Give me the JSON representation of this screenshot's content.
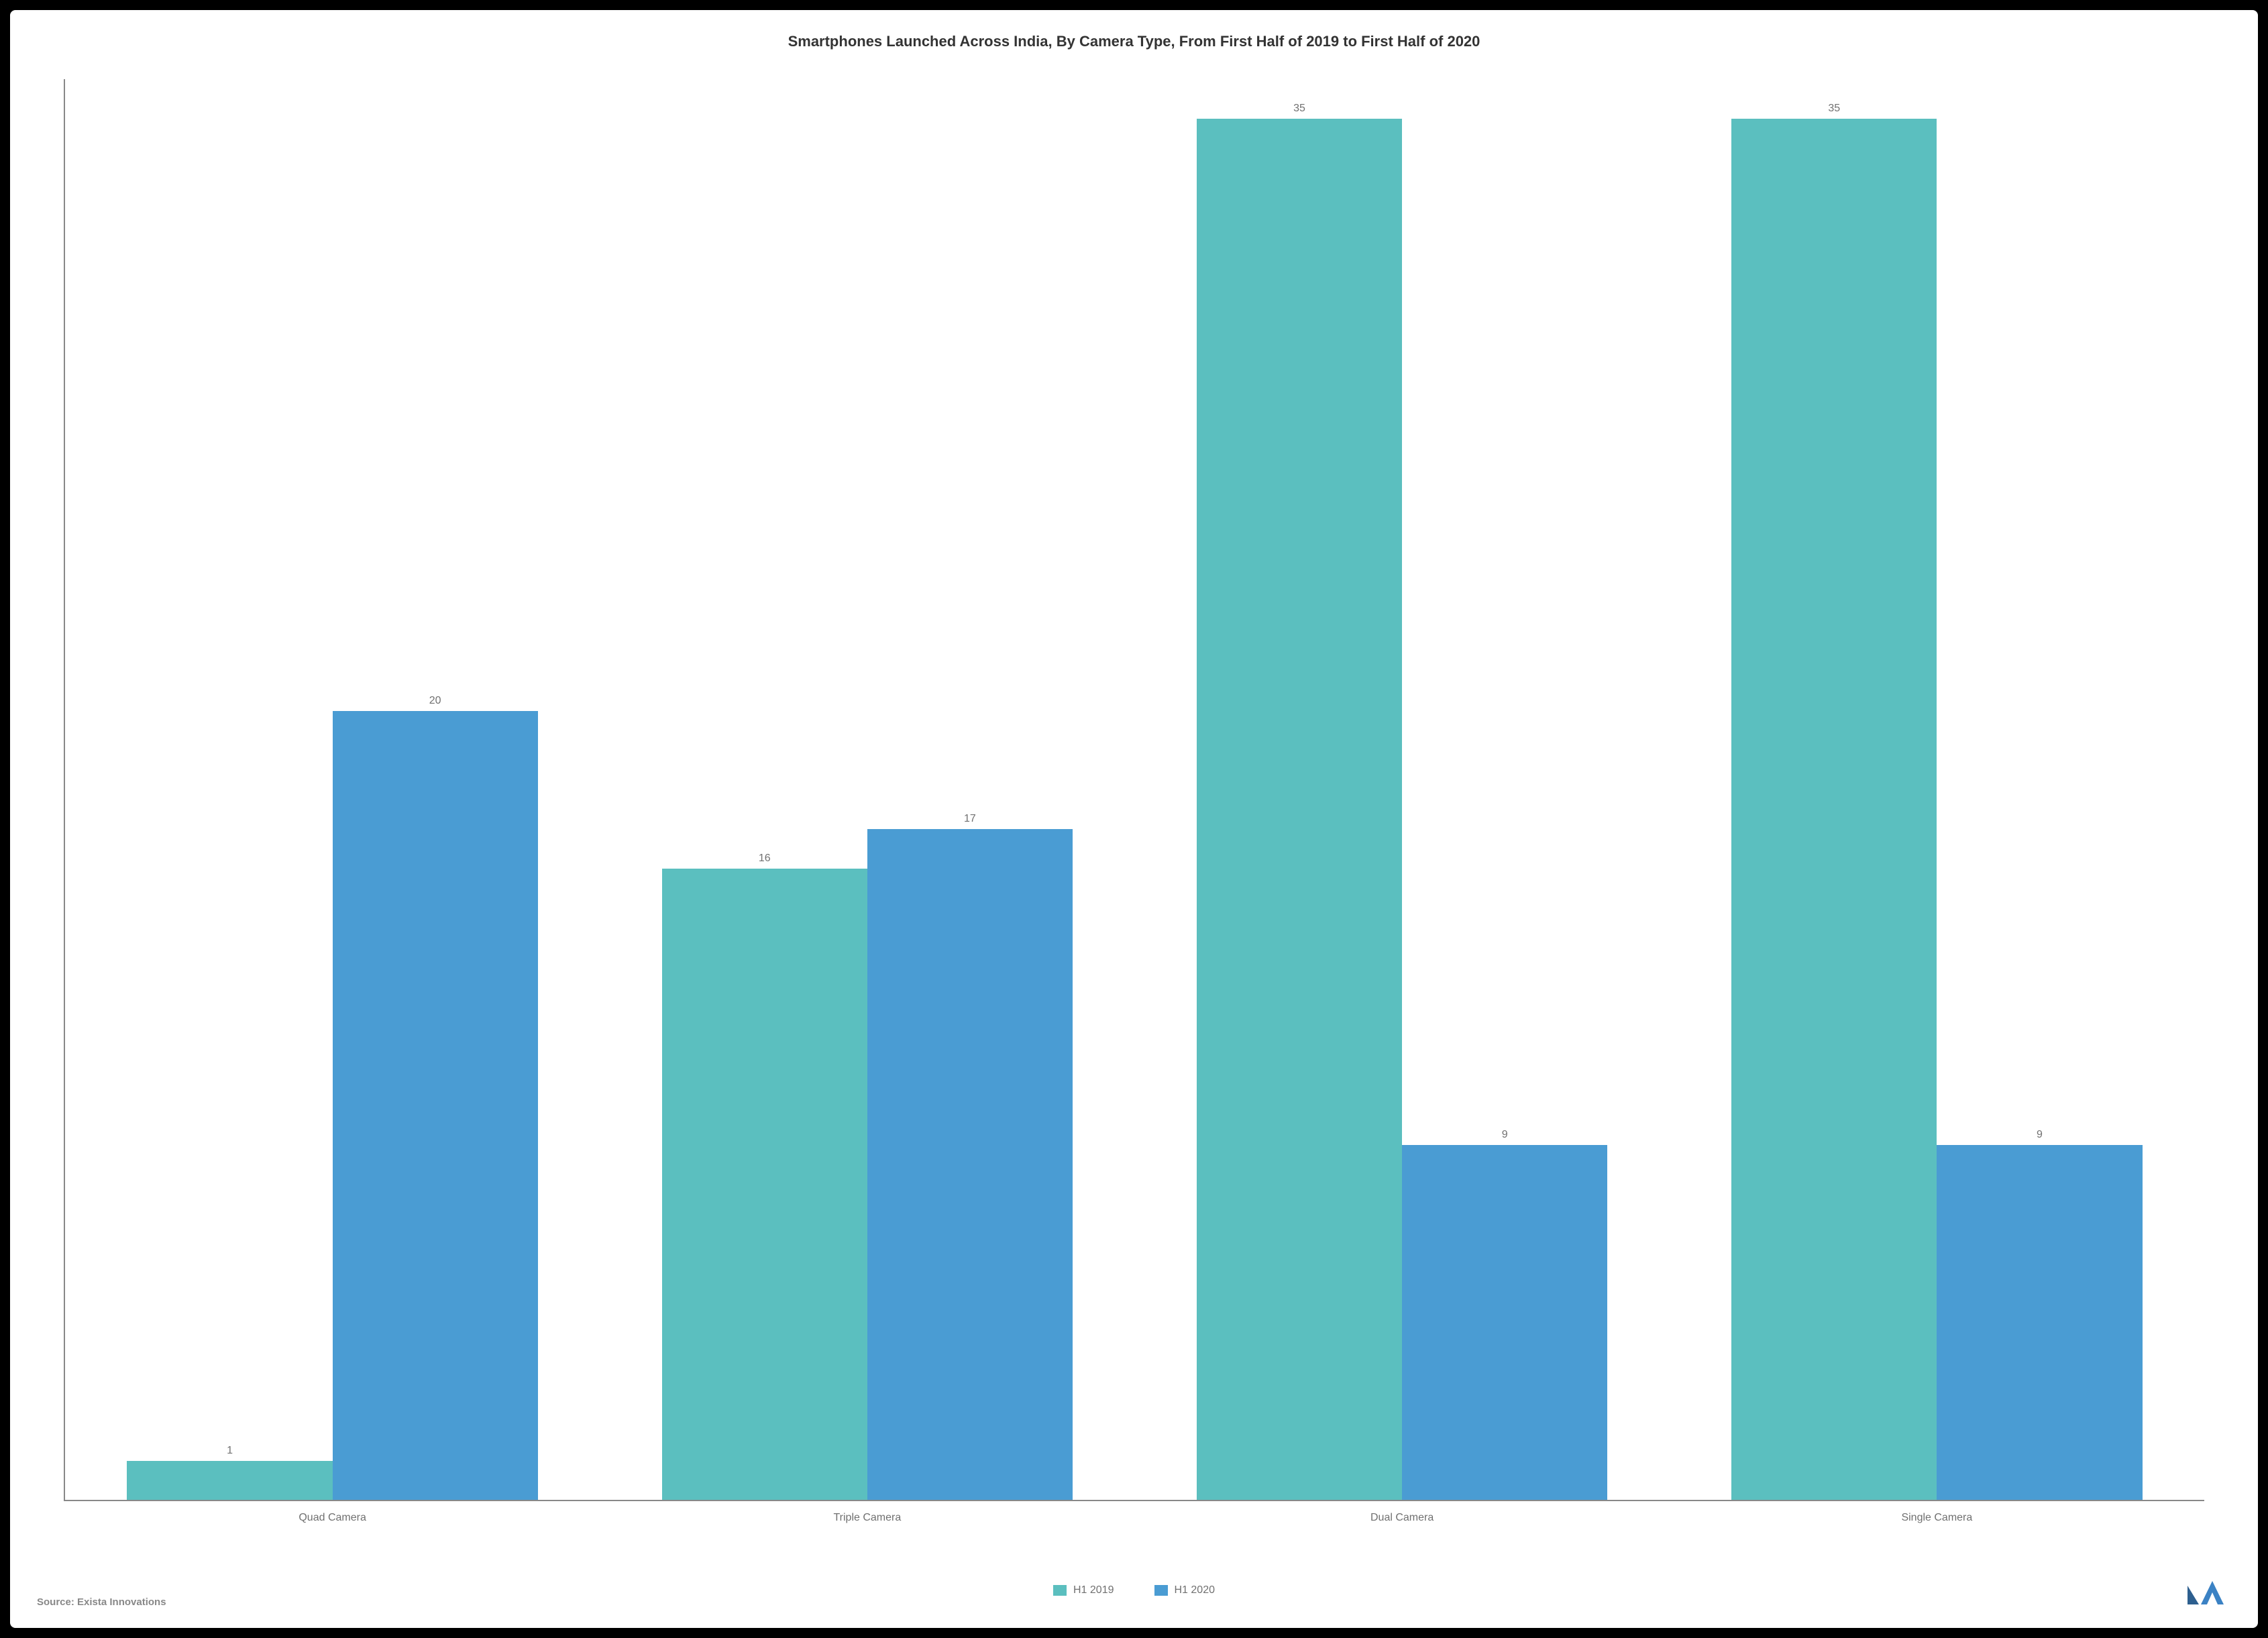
{
  "chart": {
    "type": "bar",
    "title": "Smartphones Launched Across India, By Camera Type, From First Half of 2019 to First Half of 2020",
    "title_fontsize": 22,
    "title_color": "#333333",
    "background_color": "#ffffff",
    "outer_background": "#000000",
    "axis_color": "#888888",
    "label_color": "#707070",
    "label_fontsize": 16,
    "ylim": [
      0,
      36
    ],
    "categories": [
      "Quad Camera",
      "Triple Camera",
      "Dual Camera",
      "Single Camera"
    ],
    "series": [
      {
        "name": "H1 2019",
        "color": "#5bbfbf",
        "values": [
          1,
          16,
          35,
          35
        ]
      },
      {
        "name": "H1 2020",
        "color": "#4a9cd3",
        "values": [
          20,
          17,
          9,
          9
        ]
      }
    ],
    "bar_width_pct": 48,
    "group_width_pct": 20
  },
  "source": "Source: Exista Innovations",
  "logo": {
    "color_left": "#2d5f8f",
    "color_right": "#3b82c4"
  }
}
